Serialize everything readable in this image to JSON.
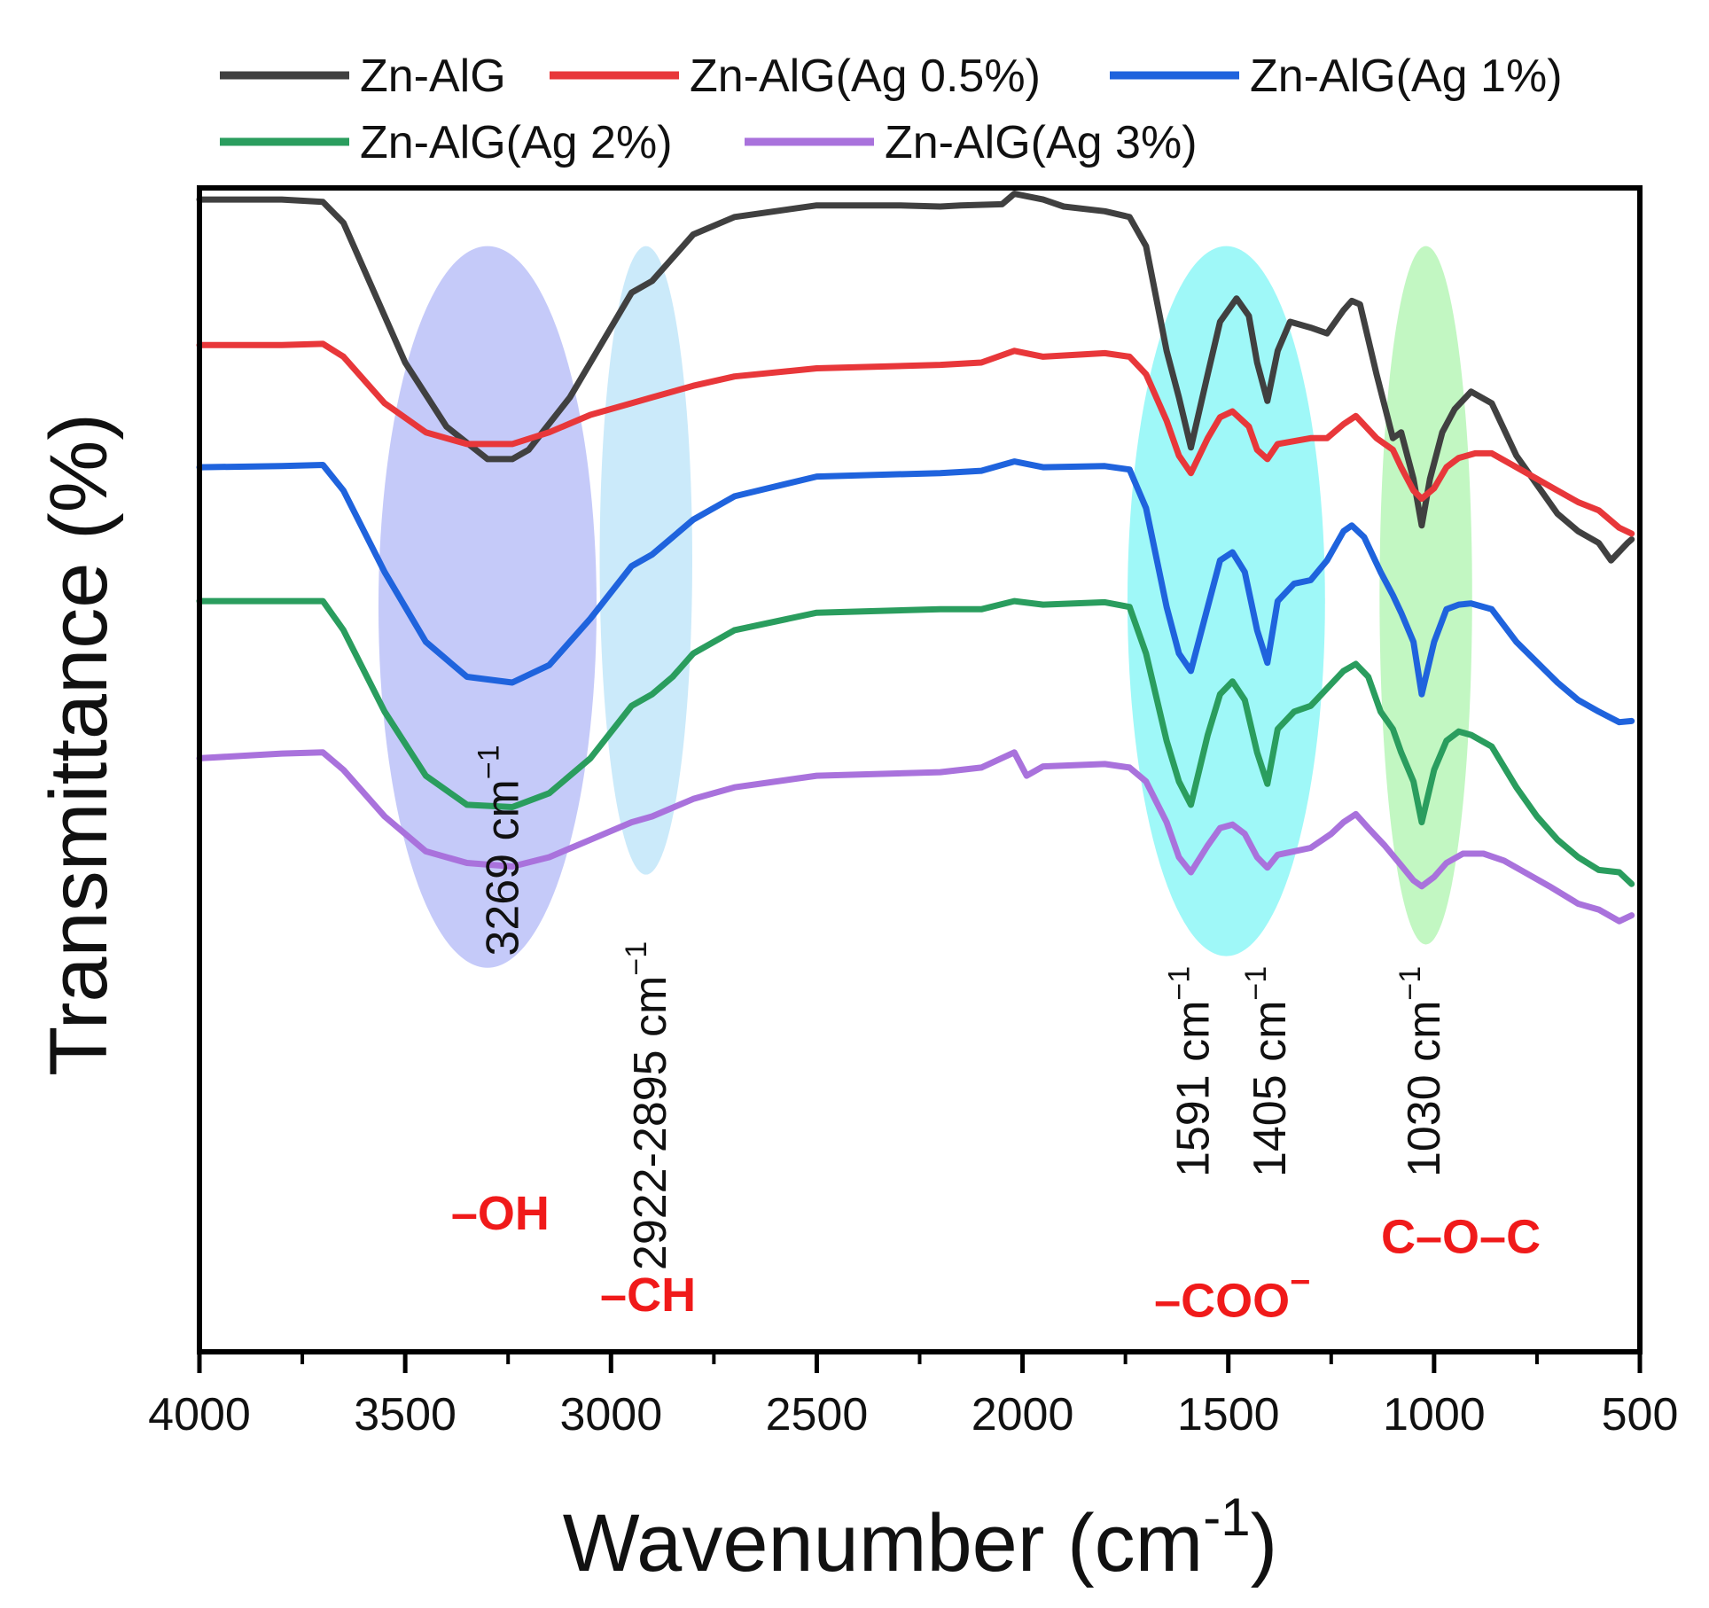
{
  "chart_data": {
    "type": "line",
    "xlabel": "Wavenumber (cm",
    "xlabel_sup": "-1",
    "xlabel_close": ")",
    "ylabel": "Transmittance (%)",
    "xlim": [
      4000,
      500
    ],
    "ylim": [
      0,
      100
    ],
    "grid": false,
    "legend_position": "top",
    "x_ticks": [
      "4000",
      "3500",
      "3000",
      "2500",
      "2000",
      "1500",
      "1000",
      "500"
    ],
    "x_tick_values": [
      4000,
      3500,
      3000,
      2500,
      2000,
      1500,
      1000,
      500
    ],
    "regions": [
      {
        "name": "oh-region",
        "center": 3300,
        "width": 530,
        "top": 95,
        "bottom": 33,
        "color": "#9fa6f5"
      },
      {
        "name": "ch-region",
        "center": 2915,
        "width": 225,
        "top": 95,
        "bottom": 41,
        "color": "#a9dcf7"
      },
      {
        "name": "coo-region",
        "center": 1505,
        "width": 480,
        "top": 95,
        "bottom": 34,
        "color": "#5ff3f3"
      },
      {
        "name": "coc-region",
        "center": 1020,
        "width": 225,
        "top": 95,
        "bottom": 35,
        "color": "#99f29a"
      }
    ],
    "annotations": [
      {
        "name": "label-3269",
        "text": "3269 cm",
        "sup": "−1",
        "x": 3269,
        "y": 34
      },
      {
        "name": "label-2922",
        "text": "2922-2895 cm",
        "sup": "−1",
        "x": 2910,
        "y": 7
      },
      {
        "name": "label-1591",
        "text": "1591 cm",
        "sup": "−1",
        "x": 1591,
        "y": 15
      },
      {
        "name": "label-1405",
        "text": "1405 cm",
        "sup": "−1",
        "x": 1405,
        "y": 15
      },
      {
        "name": "label-1030",
        "text": "1030 cm",
        "sup": "−1",
        "x": 1030,
        "y": 15
      }
    ],
    "group_labels": [
      {
        "name": "oh-group-label",
        "text": "–OH",
        "x": 3269,
        "y": 10.5
      },
      {
        "name": "ch-group-label",
        "text": "–CH",
        "x": 2910,
        "y": 3.5
      },
      {
        "name": "coo-group-label",
        "text": "–COO",
        "sup": "−",
        "x": 1490,
        "y": 3
      },
      {
        "name": "coc-group-label",
        "text": "C–O–C",
        "x": 935,
        "y": 8.5
      }
    ],
    "series": [
      {
        "name": "Zn-AlG",
        "color": "#404040",
        "points": [
          [
            4000,
            99
          ],
          [
            3800,
            99
          ],
          [
            3700,
            98.8
          ],
          [
            3650,
            97
          ],
          [
            3600,
            93
          ],
          [
            3500,
            85
          ],
          [
            3400,
            79.5
          ],
          [
            3300,
            76.7
          ],
          [
            3240,
            76.7
          ],
          [
            3200,
            77.5
          ],
          [
            3100,
            82
          ],
          [
            3000,
            88
          ],
          [
            2950,
            91
          ],
          [
            2900,
            92
          ],
          [
            2850,
            94
          ],
          [
            2800,
            96
          ],
          [
            2700,
            97.5
          ],
          [
            2500,
            98.5
          ],
          [
            2300,
            98.5
          ],
          [
            2200,
            98.4
          ],
          [
            2150,
            98.5
          ],
          [
            2050,
            98.6
          ],
          [
            2020,
            99.5
          ],
          [
            1950,
            99
          ],
          [
            1900,
            98.4
          ],
          [
            1800,
            98
          ],
          [
            1740,
            97.5
          ],
          [
            1700,
            95
          ],
          [
            1650,
            86
          ],
          [
            1620,
            82
          ],
          [
            1591,
            77.7
          ],
          [
            1550,
            84
          ],
          [
            1520,
            88.5
          ],
          [
            1480,
            90.5
          ],
          [
            1450,
            89
          ],
          [
            1430,
            85
          ],
          [
            1405,
            81.7
          ],
          [
            1380,
            86
          ],
          [
            1350,
            88.5
          ],
          [
            1300,
            88
          ],
          [
            1260,
            87.5
          ],
          [
            1220,
            89.5
          ],
          [
            1200,
            90.3
          ],
          [
            1180,
            90
          ],
          [
            1140,
            84
          ],
          [
            1100,
            78.5
          ],
          [
            1080,
            79
          ],
          [
            1050,
            75
          ],
          [
            1030,
            71
          ],
          [
            1010,
            75
          ],
          [
            980,
            79
          ],
          [
            950,
            81
          ],
          [
            910,
            82.5
          ],
          [
            860,
            81.5
          ],
          [
            800,
            77
          ],
          [
            750,
            74.5
          ],
          [
            700,
            72
          ],
          [
            650,
            70.5
          ],
          [
            600,
            69.5
          ],
          [
            570,
            68
          ],
          [
            530,
            69.5
          ],
          [
            520,
            69.8
          ]
        ]
      },
      {
        "name": "Zn-AlG(Ag 0.5%)",
        "color": "#e8373a",
        "points": [
          [
            4000,
            86.5
          ],
          [
            3800,
            86.5
          ],
          [
            3700,
            86.6
          ],
          [
            3650,
            85.5
          ],
          [
            3550,
            81.5
          ],
          [
            3450,
            79
          ],
          [
            3350,
            78
          ],
          [
            3240,
            78
          ],
          [
            3150,
            79
          ],
          [
            3050,
            80.5
          ],
          [
            2950,
            81.5
          ],
          [
            2900,
            82
          ],
          [
            2800,
            83
          ],
          [
            2700,
            83.8
          ],
          [
            2500,
            84.5
          ],
          [
            2200,
            84.8
          ],
          [
            2100,
            85
          ],
          [
            2020,
            86
          ],
          [
            1950,
            85.5
          ],
          [
            1800,
            85.8
          ],
          [
            1740,
            85.5
          ],
          [
            1700,
            84
          ],
          [
            1650,
            80
          ],
          [
            1620,
            77
          ],
          [
            1591,
            75.5
          ],
          [
            1550,
            78.5
          ],
          [
            1520,
            80.3
          ],
          [
            1490,
            80.8
          ],
          [
            1450,
            79.5
          ],
          [
            1430,
            77.5
          ],
          [
            1405,
            76.7
          ],
          [
            1380,
            78
          ],
          [
            1300,
            78.5
          ],
          [
            1260,
            78.5
          ],
          [
            1220,
            79.7
          ],
          [
            1190,
            80.4
          ],
          [
            1140,
            78.5
          ],
          [
            1100,
            77.5
          ],
          [
            1080,
            76
          ],
          [
            1050,
            74
          ],
          [
            1030,
            73.3
          ],
          [
            1000,
            74.2
          ],
          [
            970,
            76
          ],
          [
            940,
            76.8
          ],
          [
            900,
            77.2
          ],
          [
            860,
            77.2
          ],
          [
            800,
            76
          ],
          [
            700,
            74
          ],
          [
            650,
            73
          ],
          [
            600,
            72.3
          ],
          [
            550,
            70.8
          ],
          [
            520,
            70.3
          ]
        ]
      },
      {
        "name": "Zn-AlG(Ag 1%)",
        "color": "#1f63dd",
        "points": [
          [
            4000,
            76
          ],
          [
            3800,
            76.1
          ],
          [
            3700,
            76.2
          ],
          [
            3650,
            74
          ],
          [
            3550,
            67
          ],
          [
            3450,
            61
          ],
          [
            3350,
            58
          ],
          [
            3240,
            57.5
          ],
          [
            3150,
            59
          ],
          [
            3050,
            63
          ],
          [
            2950,
            67.5
          ],
          [
            2900,
            68.5
          ],
          [
            2850,
            70
          ],
          [
            2800,
            71.5
          ],
          [
            2700,
            73.5
          ],
          [
            2500,
            75.2
          ],
          [
            2200,
            75.5
          ],
          [
            2100,
            75.7
          ],
          [
            2020,
            76.5
          ],
          [
            1950,
            76
          ],
          [
            1800,
            76.1
          ],
          [
            1740,
            75.8
          ],
          [
            1700,
            72.5
          ],
          [
            1650,
            64
          ],
          [
            1620,
            60
          ],
          [
            1591,
            58.5
          ],
          [
            1550,
            64
          ],
          [
            1520,
            68
          ],
          [
            1490,
            68.7
          ],
          [
            1460,
            67
          ],
          [
            1430,
            62
          ],
          [
            1405,
            59.2
          ],
          [
            1380,
            64.5
          ],
          [
            1340,
            66
          ],
          [
            1300,
            66.3
          ],
          [
            1260,
            68
          ],
          [
            1220,
            70.5
          ],
          [
            1200,
            71
          ],
          [
            1170,
            70
          ],
          [
            1130,
            67
          ],
          [
            1100,
            65
          ],
          [
            1080,
            63.5
          ],
          [
            1050,
            61
          ],
          [
            1030,
            56.5
          ],
          [
            1000,
            61
          ],
          [
            970,
            63.8
          ],
          [
            940,
            64.2
          ],
          [
            910,
            64.3
          ],
          [
            860,
            63.8
          ],
          [
            800,
            61
          ],
          [
            700,
            57.5
          ],
          [
            650,
            56
          ],
          [
            600,
            55
          ],
          [
            550,
            54.1
          ],
          [
            520,
            54.2
          ]
        ]
      },
      {
        "name": "Zn-AlG(Ag 2%)",
        "color": "#2a9d5e",
        "points": [
          [
            4000,
            64.5
          ],
          [
            3800,
            64.5
          ],
          [
            3700,
            64.5
          ],
          [
            3650,
            62
          ],
          [
            3550,
            55
          ],
          [
            3450,
            49.5
          ],
          [
            3350,
            47
          ],
          [
            3240,
            46.8
          ],
          [
            3150,
            48
          ],
          [
            3050,
            51
          ],
          [
            2950,
            55.5
          ],
          [
            2900,
            56.5
          ],
          [
            2850,
            58
          ],
          [
            2800,
            60
          ],
          [
            2700,
            62
          ],
          [
            2500,
            63.5
          ],
          [
            2200,
            63.8
          ],
          [
            2100,
            63.8
          ],
          [
            2020,
            64.5
          ],
          [
            1950,
            64.2
          ],
          [
            1800,
            64.4
          ],
          [
            1740,
            64
          ],
          [
            1700,
            60
          ],
          [
            1650,
            52.5
          ],
          [
            1620,
            49
          ],
          [
            1591,
            47
          ],
          [
            1550,
            53
          ],
          [
            1520,
            56.5
          ],
          [
            1490,
            57.6
          ],
          [
            1460,
            56
          ],
          [
            1430,
            51.5
          ],
          [
            1405,
            48.8
          ],
          [
            1380,
            53.5
          ],
          [
            1340,
            55
          ],
          [
            1300,
            55.5
          ],
          [
            1260,
            57
          ],
          [
            1220,
            58.5
          ],
          [
            1190,
            59.1
          ],
          [
            1160,
            58
          ],
          [
            1130,
            55
          ],
          [
            1100,
            53.5
          ],
          [
            1080,
            51.5
          ],
          [
            1050,
            49
          ],
          [
            1030,
            45.5
          ],
          [
            1000,
            50
          ],
          [
            970,
            52.5
          ],
          [
            940,
            53.3
          ],
          [
            910,
            53
          ],
          [
            860,
            52
          ],
          [
            800,
            48.5
          ],
          [
            750,
            46
          ],
          [
            700,
            44
          ],
          [
            650,
            42.5
          ],
          [
            600,
            41.4
          ],
          [
            550,
            41.2
          ],
          [
            520,
            40.2
          ]
        ]
      },
      {
        "name": "Zn-AlG(Ag 3%)",
        "color": "#a972dc",
        "points": [
          [
            4000,
            51
          ],
          [
            3800,
            51.4
          ],
          [
            3700,
            51.5
          ],
          [
            3650,
            50
          ],
          [
            3550,
            46
          ],
          [
            3450,
            43
          ],
          [
            3350,
            42
          ],
          [
            3240,
            41.7
          ],
          [
            3150,
            42.5
          ],
          [
            3050,
            44
          ],
          [
            2950,
            45.5
          ],
          [
            2900,
            46
          ],
          [
            2800,
            47.5
          ],
          [
            2700,
            48.5
          ],
          [
            2500,
            49.5
          ],
          [
            2200,
            49.8
          ],
          [
            2100,
            50.2
          ],
          [
            2020,
            51.5
          ],
          [
            1990,
            49.5
          ],
          [
            1950,
            50.3
          ],
          [
            1800,
            50.5
          ],
          [
            1740,
            50.2
          ],
          [
            1700,
            49
          ],
          [
            1650,
            45.5
          ],
          [
            1620,
            42.5
          ],
          [
            1591,
            41.2
          ],
          [
            1550,
            43.5
          ],
          [
            1520,
            45
          ],
          [
            1490,
            45.3
          ],
          [
            1460,
            44.5
          ],
          [
            1430,
            42.5
          ],
          [
            1405,
            41.6
          ],
          [
            1380,
            42.7
          ],
          [
            1300,
            43.3
          ],
          [
            1250,
            44.5
          ],
          [
            1220,
            45.5
          ],
          [
            1190,
            46.2
          ],
          [
            1160,
            45
          ],
          [
            1120,
            43.5
          ],
          [
            1080,
            41.8
          ],
          [
            1050,
            40.5
          ],
          [
            1030,
            40
          ],
          [
            1000,
            40.8
          ],
          [
            970,
            42
          ],
          [
            930,
            42.8
          ],
          [
            880,
            42.8
          ],
          [
            830,
            42.2
          ],
          [
            780,
            41.2
          ],
          [
            720,
            40
          ],
          [
            650,
            38.5
          ],
          [
            600,
            38
          ],
          [
            550,
            37
          ],
          [
            520,
            37.5
          ]
        ]
      }
    ]
  }
}
